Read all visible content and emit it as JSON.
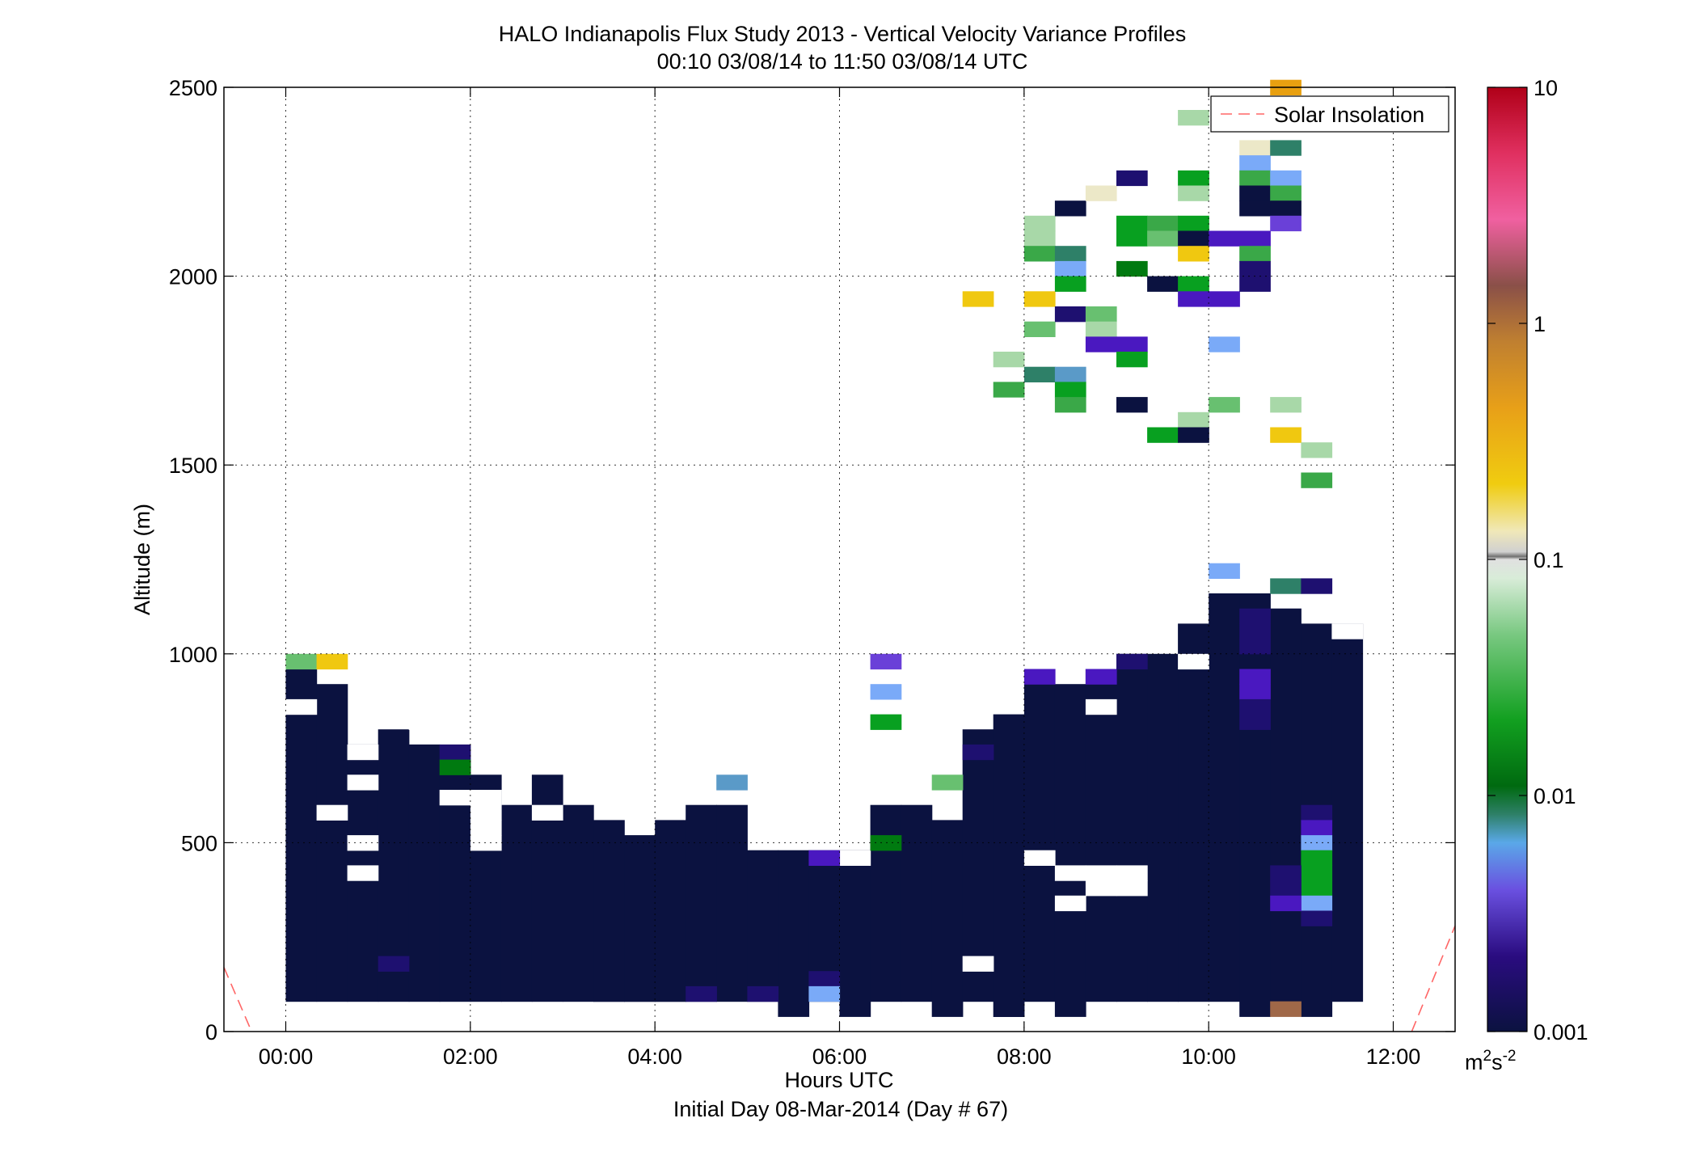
{
  "chart_data": {
    "type": "heatmap",
    "title": "HALO Indianapolis Flux Study 2013 - Vertical Velocity Variance Profiles",
    "subtitle": "00:10 03/08/14 to 11:50 03/08/14  UTC",
    "xlabel": "Hours UTC",
    "xlabel2": "Initial Day 08-Mar-2014 (Day # 67)",
    "ylabel": "Altitude (m)",
    "xlim": [
      -0.67,
      12.67
    ],
    "ylim": [
      0,
      2500
    ],
    "x_ticks": [
      {
        "value": 0,
        "label": "00:00"
      },
      {
        "value": 2,
        "label": "02:00"
      },
      {
        "value": 4,
        "label": "04:00"
      },
      {
        "value": 6,
        "label": "06:00"
      },
      {
        "value": 8,
        "label": "08:00"
      },
      {
        "value": 10,
        "label": "10:00"
      },
      {
        "value": 12,
        "label": "12:00"
      }
    ],
    "y_ticks": [
      {
        "value": 0,
        "label": "0"
      },
      {
        "value": 500,
        "label": "500"
      },
      {
        "value": 1000,
        "label": "1000"
      },
      {
        "value": 1500,
        "label": "1500"
      },
      {
        "value": 2000,
        "label": "2000"
      },
      {
        "value": 2500,
        "label": "2500"
      }
    ],
    "grid": true,
    "legend": {
      "position": "top-right",
      "entries": [
        {
          "name": "Solar Insolation",
          "style": "dashed",
          "color": "#ff6666"
        }
      ]
    },
    "colorbar": {
      "scale": "log",
      "range": [
        0.001,
        10
      ],
      "ticks": [
        {
          "value": 0.001,
          "label": "0.001"
        },
        {
          "value": 0.01,
          "label": "0.01"
        },
        {
          "value": 0.1,
          "label": "0.1"
        },
        {
          "value": 1,
          "label": "1"
        },
        {
          "value": 10,
          "label": "10"
        }
      ],
      "unit_base": "m",
      "unit_sup1": "2",
      "unit_mid": "s",
      "unit_sup2": "-2"
    },
    "colors": {
      "floor": "#0b1240",
      "deep_purple": "#1e1070",
      "purple": "#4a18c0",
      "violet": "#6a40d8",
      "light_blue": "#7aaaf8",
      "steel_blue": "#5a9ac8",
      "teal": "#2e8068",
      "dark_green": "#007a10",
      "green": "#08a020",
      "mid_green": "#3aa848",
      "light_green": "#68c070",
      "pale_green": "#a8d8a8",
      "cream": "#ece8c8",
      "yellow": "#f0c810",
      "orange": "#e8a010",
      "brown": "#a06848",
      "solar_line": "#ff6666"
    },
    "cell_size": {
      "dt_hours": 0.3333,
      "dz_m": 40
    },
    "solar_insolation": {
      "left": [
        [
          -0.67,
          170
        ],
        [
          -0.37,
          0
        ]
      ],
      "right": [
        [
          12.2,
          0
        ],
        [
          12.67,
          280
        ]
      ]
    },
    "floor_columns": [
      {
        "t": 0.167,
        "z0": 80,
        "z1": 960
      },
      {
        "t": 0.5,
        "z0": 80,
        "z1": 920
      },
      {
        "t": 0.833,
        "z0": 80,
        "z1": 760
      },
      {
        "t": 1.167,
        "z0": 80,
        "z1": 800
      },
      {
        "t": 1.5,
        "z0": 80,
        "z1": 760
      },
      {
        "t": 1.833,
        "z0": 80,
        "z1": 720
      },
      {
        "t": 2.167,
        "z0": 80,
        "z1": 680
      },
      {
        "t": 2.5,
        "z0": 80,
        "z1": 600
      },
      {
        "t": 2.833,
        "z0": 80,
        "z1": 680
      },
      {
        "t": 3.167,
        "z0": 80,
        "z1": 600
      },
      {
        "t": 3.5,
        "z0": 80,
        "z1": 560
      },
      {
        "t": 3.833,
        "z0": 80,
        "z1": 520
      },
      {
        "t": 4.167,
        "z0": 80,
        "z1": 560
      },
      {
        "t": 4.5,
        "z0": 80,
        "z1": 600
      },
      {
        "t": 4.833,
        "z0": 80,
        "z1": 600
      },
      {
        "t": 5.167,
        "z0": 80,
        "z1": 480
      },
      {
        "t": 5.5,
        "z0": 40,
        "z1": 480
      },
      {
        "t": 5.833,
        "z0": 80,
        "z1": 480
      },
      {
        "t": 6.167,
        "z0": 40,
        "z1": 480
      },
      {
        "t": 6.5,
        "z0": 80,
        "z1": 600
      },
      {
        "t": 6.833,
        "z0": 80,
        "z1": 600
      },
      {
        "t": 7.167,
        "z0": 40,
        "z1": 560
      },
      {
        "t": 7.5,
        "z0": 80,
        "z1": 800
      },
      {
        "t": 7.833,
        "z0": 40,
        "z1": 840
      },
      {
        "t": 8.167,
        "z0": 80,
        "z1": 920
      },
      {
        "t": 8.5,
        "z0": 40,
        "z1": 920
      },
      {
        "t": 8.833,
        "z0": 80,
        "z1": 960
      },
      {
        "t": 9.167,
        "z0": 80,
        "z1": 1000
      },
      {
        "t": 9.5,
        "z0": 80,
        "z1": 1000
      },
      {
        "t": 9.833,
        "z0": 80,
        "z1": 1080
      },
      {
        "t": 10.167,
        "z0": 80,
        "z1": 1160
      },
      {
        "t": 10.5,
        "z0": 40,
        "z1": 1160
      },
      {
        "t": 10.833,
        "z0": 80,
        "z1": 1120
      },
      {
        "t": 11.167,
        "z0": 40,
        "z1": 1080
      },
      {
        "t": 11.5,
        "z0": 80,
        "z1": 1080
      }
    ],
    "gaps": [
      [
        0.167,
        840
      ],
      [
        0.5,
        560
      ],
      [
        0.833,
        720
      ],
      [
        0.833,
        640
      ],
      [
        0.833,
        480
      ],
      [
        0.833,
        400
      ],
      [
        1.5,
        800
      ],
      [
        1.833,
        600
      ],
      [
        2.167,
        600
      ],
      [
        2.167,
        560
      ],
      [
        2.167,
        520
      ],
      [
        2.167,
        480
      ],
      [
        2.833,
        560
      ],
      [
        6.167,
        440
      ],
      [
        7.5,
        160
      ],
      [
        8.167,
        440
      ],
      [
        8.5,
        400
      ],
      [
        8.5,
        320
      ],
      [
        8.833,
        400
      ],
      [
        8.833,
        360
      ],
      [
        9.167,
        400
      ],
      [
        9.167,
        360
      ],
      [
        9.833,
        960
      ],
      [
        8.833,
        840
      ],
      [
        11.5,
        1040
      ]
    ],
    "cells": [
      [
        0.167,
        960,
        "light_green"
      ],
      [
        0.5,
        960,
        "yellow"
      ],
      [
        1.833,
        720,
        "deep_purple"
      ],
      [
        1.833,
        680,
        "dark_green"
      ],
      [
        1.167,
        160,
        "deep_purple"
      ],
      [
        4.833,
        640,
        "steel_blue"
      ],
      [
        4.5,
        80,
        "deep_purple"
      ],
      [
        5.167,
        80,
        "deep_purple"
      ],
      [
        5.833,
        440,
        "purple"
      ],
      [
        5.833,
        120,
        "deep_purple"
      ],
      [
        5.833,
        80,
        "light_blue"
      ],
      [
        6.5,
        960,
        "violet"
      ],
      [
        6.5,
        880,
        "light_blue"
      ],
      [
        6.5,
        800,
        "green"
      ],
      [
        6.5,
        480,
        "dark_green"
      ],
      [
        7.167,
        640,
        "light_green"
      ],
      [
        7.5,
        720,
        "deep_purple"
      ],
      [
        8.167,
        920,
        "purple"
      ],
      [
        8.833,
        920,
        "purple"
      ],
      [
        9.167,
        960,
        "deep_purple"
      ],
      [
        10.5,
        1000,
        "deep_purple"
      ],
      [
        10.5,
        1040,
        "deep_purple"
      ],
      [
        10.5,
        1080,
        "deep_purple"
      ],
      [
        10.5,
        920,
        "purple"
      ],
      [
        10.5,
        880,
        "purple"
      ],
      [
        10.5,
        840,
        "deep_purple"
      ],
      [
        10.5,
        800,
        "deep_purple"
      ],
      [
        10.167,
        1200,
        "light_blue"
      ],
      [
        10.833,
        1160,
        "teal"
      ],
      [
        11.167,
        1160,
        "deep_purple"
      ],
      [
        11.167,
        560,
        "deep_purple"
      ],
      [
        11.167,
        520,
        "purple"
      ],
      [
        11.167,
        480,
        "light_blue"
      ],
      [
        11.167,
        440,
        "green"
      ],
      [
        11.167,
        400,
        "green"
      ],
      [
        11.167,
        360,
        "green"
      ],
      [
        11.167,
        320,
        "light_blue"
      ],
      [
        11.167,
        280,
        "deep_purple"
      ],
      [
        10.833,
        400,
        "deep_purple"
      ],
      [
        10.833,
        360,
        "deep_purple"
      ],
      [
        10.833,
        320,
        "purple"
      ],
      [
        10.833,
        40,
        "brown"
      ],
      [
        7.5,
        1920,
        "yellow"
      ],
      [
        8.167,
        1920,
        "yellow"
      ],
      [
        8.167,
        1840,
        "light_green"
      ],
      [
        8.5,
        1880,
        "deep_purple"
      ],
      [
        8.833,
        1880,
        "light_green"
      ],
      [
        8.833,
        1840,
        "pale_green"
      ],
      [
        8.833,
        1800,
        "purple"
      ],
      [
        9.167,
        1800,
        "purple"
      ],
      [
        9.167,
        1760,
        "green"
      ],
      [
        7.833,
        1760,
        "pale_green"
      ],
      [
        8.167,
        1720,
        "teal"
      ],
      [
        8.5,
        1720,
        "steel_blue"
      ],
      [
        7.833,
        1680,
        "mid_green"
      ],
      [
        8.5,
        1680,
        "green"
      ],
      [
        8.5,
        1640,
        "mid_green"
      ],
      [
        9.167,
        1640,
        "floor"
      ],
      [
        9.833,
        1600,
        "pale_green"
      ],
      [
        10.167,
        1640,
        "light_green"
      ],
      [
        9.5,
        1560,
        "green"
      ],
      [
        9.833,
        1560,
        "floor"
      ],
      [
        10.833,
        1640,
        "pale_green"
      ],
      [
        10.833,
        1560,
        "yellow"
      ],
      [
        11.167,
        1520,
        "pale_green"
      ],
      [
        11.167,
        1440,
        "mid_green"
      ],
      [
        10.167,
        1800,
        "light_blue"
      ],
      [
        8.167,
        2120,
        "pale_green"
      ],
      [
        8.167,
        2080,
        "pale_green"
      ],
      [
        8.167,
        2040,
        "mid_green"
      ],
      [
        8.5,
        2160,
        "floor"
      ],
      [
        8.5,
        2040,
        "teal"
      ],
      [
        8.5,
        2000,
        "light_blue"
      ],
      [
        8.5,
        1960,
        "green"
      ],
      [
        8.833,
        2200,
        "cream"
      ],
      [
        9.167,
        2240,
        "deep_purple"
      ],
      [
        9.167,
        2120,
        "green"
      ],
      [
        9.167,
        2080,
        "green"
      ],
      [
        9.167,
        2000,
        "dark_green"
      ],
      [
        9.5,
        2120,
        "mid_green"
      ],
      [
        9.5,
        2080,
        "light_green"
      ],
      [
        9.5,
        1960,
        "floor"
      ],
      [
        9.833,
        2240,
        "green"
      ],
      [
        9.833,
        2200,
        "pale_green"
      ],
      [
        9.833,
        2120,
        "green"
      ],
      [
        9.833,
        2080,
        "floor"
      ],
      [
        9.833,
        2040,
        "yellow"
      ],
      [
        9.833,
        1960,
        "green"
      ],
      [
        9.833,
        1920,
        "purple"
      ],
      [
        10.167,
        2080,
        "purple"
      ],
      [
        10.167,
        1920,
        "purple"
      ],
      [
        10.5,
        2080,
        "purple"
      ],
      [
        10.5,
        2040,
        "mid_green"
      ],
      [
        10.5,
        2000,
        "deep_purple"
      ],
      [
        10.5,
        1960,
        "deep_purple"
      ],
      [
        10.5,
        2320,
        "cream"
      ],
      [
        10.5,
        2280,
        "light_blue"
      ],
      [
        10.5,
        2240,
        "mid_green"
      ],
      [
        10.5,
        2200,
        "floor"
      ],
      [
        10.5,
        2160,
        "floor"
      ],
      [
        10.833,
        2320,
        "teal"
      ],
      [
        10.833,
        2240,
        "light_blue"
      ],
      [
        10.833,
        2200,
        "mid_green"
      ],
      [
        10.833,
        2160,
        "floor"
      ],
      [
        10.833,
        2120,
        "violet"
      ],
      [
        10.833,
        2480,
        "orange"
      ],
      [
        9.833,
        2400,
        "pale_green"
      ]
    ]
  }
}
